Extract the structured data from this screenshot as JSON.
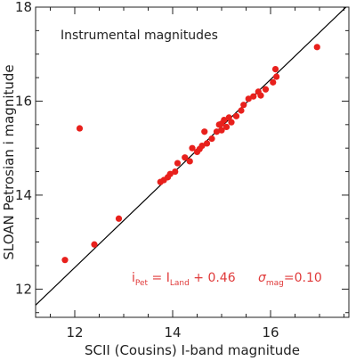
{
  "chart_data": {
    "type": "scatter",
    "title": "",
    "annotation": "Instrumental magnitudes",
    "xlabel": "SCII (Cousins) I-band magnitude",
    "ylabel": "SLOAN Petrosian i magnitude",
    "xlim": [
      11.2,
      17.6
    ],
    "ylim": [
      11.4,
      18.0
    ],
    "xticks": [
      12,
      14,
      16
    ],
    "yticks": [
      12,
      14,
      16,
      18
    ],
    "grid": false,
    "point_color": "#e8201c",
    "fit_line": {
      "intercept": 0.46,
      "slope": 1.0,
      "color": "#000000"
    },
    "fit_equation": {
      "lhs_main": "i",
      "lhs_sub": "Pet",
      "equals": " = ",
      "rhs_main": "I",
      "rhs_sub": "Land",
      "rhs_tail": " + 0.46",
      "sigma_symbol": "σ",
      "sigma_sub": "mag",
      "sigma_value": "=0.10"
    },
    "points": [
      {
        "x": 11.8,
        "y": 12.62
      },
      {
        "x": 12.1,
        "y": 15.42
      },
      {
        "x": 12.4,
        "y": 12.95
      },
      {
        "x": 12.9,
        "y": 13.5
      },
      {
        "x": 13.75,
        "y": 14.28
      },
      {
        "x": 13.82,
        "y": 14.32
      },
      {
        "x": 13.9,
        "y": 14.38
      },
      {
        "x": 13.95,
        "y": 14.45
      },
      {
        "x": 14.05,
        "y": 14.5
      },
      {
        "x": 14.1,
        "y": 14.68
      },
      {
        "x": 14.25,
        "y": 14.8
      },
      {
        "x": 14.35,
        "y": 14.72
      },
      {
        "x": 14.4,
        "y": 15.0
      },
      {
        "x": 14.5,
        "y": 14.92
      },
      {
        "x": 14.55,
        "y": 14.98
      },
      {
        "x": 14.6,
        "y": 15.05
      },
      {
        "x": 14.65,
        "y": 15.35
      },
      {
        "x": 14.7,
        "y": 15.1
      },
      {
        "x": 14.8,
        "y": 15.2
      },
      {
        "x": 14.9,
        "y": 15.35
      },
      {
        "x": 14.95,
        "y": 15.5
      },
      {
        "x": 15.0,
        "y": 15.52
      },
      {
        "x": 15.0,
        "y": 15.38
      },
      {
        "x": 15.05,
        "y": 15.6
      },
      {
        "x": 15.1,
        "y": 15.45
      },
      {
        "x": 15.15,
        "y": 15.65
      },
      {
        "x": 15.2,
        "y": 15.55
      },
      {
        "x": 15.3,
        "y": 15.68
      },
      {
        "x": 15.4,
        "y": 15.8
      },
      {
        "x": 15.45,
        "y": 15.92
      },
      {
        "x": 15.55,
        "y": 16.05
      },
      {
        "x": 15.65,
        "y": 16.1
      },
      {
        "x": 15.75,
        "y": 16.2
      },
      {
        "x": 15.8,
        "y": 16.12
      },
      {
        "x": 15.9,
        "y": 16.25
      },
      {
        "x": 16.05,
        "y": 16.4
      },
      {
        "x": 16.1,
        "y": 16.68
      },
      {
        "x": 16.12,
        "y": 16.52
      },
      {
        "x": 16.95,
        "y": 17.15
      }
    ]
  }
}
